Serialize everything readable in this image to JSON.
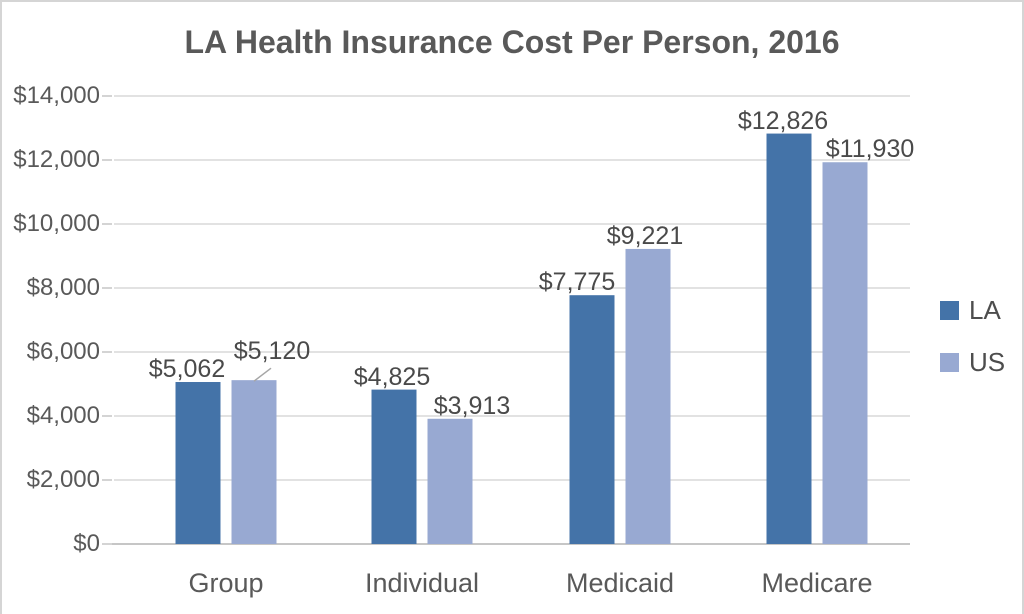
{
  "title": "LA Health Insurance Cost Per Person, 2016",
  "chart_data": {
    "type": "bar",
    "title": "LA Health Insurance Cost Per Person, 2016",
    "categories": [
      "Group",
      "Individual",
      "Medicaid",
      "Medicare"
    ],
    "series": [
      {
        "name": "LA",
        "color": "#4473A8",
        "values": [
          5062,
          4825,
          7775,
          12826
        ],
        "labels": [
          "$5,062",
          "$4,825",
          "$7,775",
          "$12,826"
        ]
      },
      {
        "name": "US",
        "color": "#98A9D2",
        "values": [
          5120,
          3913,
          9221,
          11930
        ],
        "labels": [
          "$5,120",
          "$3,913",
          "$9,221",
          "$11,930"
        ]
      }
    ],
    "xlabel": "",
    "ylabel": "",
    "ylim": [
      0,
      14000
    ],
    "ytick_step": 2000,
    "ytick_labels": [
      "$0",
      "$2,000",
      "$4,000",
      "$6,000",
      "$8,000",
      "$10,000",
      "$12,000",
      "$14,000"
    ],
    "grid": true,
    "legend_position": "right"
  },
  "colors": {
    "title_text": "#595959",
    "axis_text": "#595959",
    "data_label_text": "#4a4a4a",
    "gridline": "#d9d9d9",
    "axis_line": "#c6c6c6",
    "leader_line": "#a6a6a6",
    "la_bar": "#4473A8",
    "us_bar": "#98A9D2",
    "border": "#d5d5d5"
  }
}
